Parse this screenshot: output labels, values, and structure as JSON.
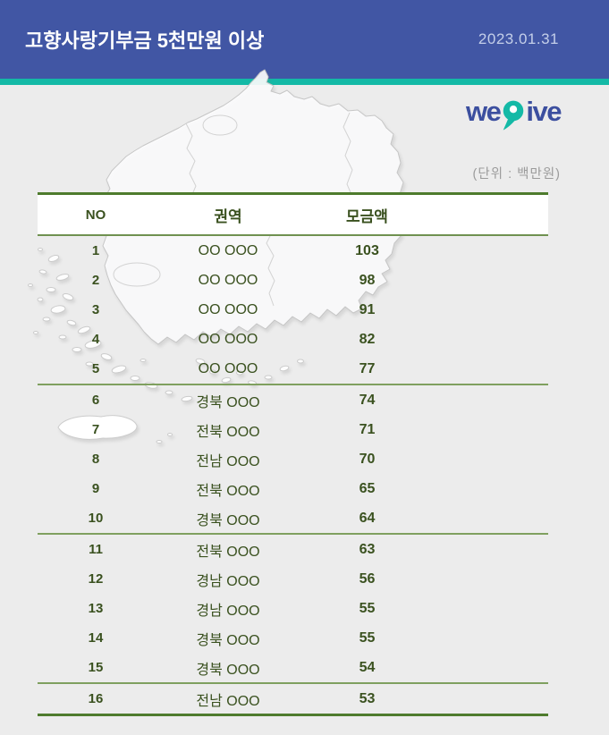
{
  "header": {
    "title": "고향사랑기부금 5천만원 이상",
    "date": "2023.01.31"
  },
  "logo": {
    "part1": "we",
    "part2": "ive",
    "name": "wegive"
  },
  "unit_label": "(단위 : 백만원)",
  "table": {
    "columns": [
      "NO",
      "권역",
      "모금액"
    ],
    "group_breaks": [
      5,
      10,
      15
    ],
    "rows": [
      {
        "no": "1",
        "region": "OO OOO",
        "amount": "103"
      },
      {
        "no": "2",
        "region": "OO OOO",
        "amount": "98"
      },
      {
        "no": "3",
        "region": "OO OOO",
        "amount": "91"
      },
      {
        "no": "4",
        "region": "OO OOO",
        "amount": "82"
      },
      {
        "no": "5",
        "region": "OO OOO",
        "amount": "77"
      },
      {
        "no": "6",
        "region": "경북 OOO",
        "amount": "74"
      },
      {
        "no": "7",
        "region": "전북 OOO",
        "amount": "71"
      },
      {
        "no": "8",
        "region": "전남 OOO",
        "amount": "70"
      },
      {
        "no": "9",
        "region": "전북 OOO",
        "amount": "65"
      },
      {
        "no": "10",
        "region": "경북 OOO",
        "amount": "64"
      },
      {
        "no": "11",
        "region": "전북 OOO",
        "amount": "63"
      },
      {
        "no": "12",
        "region": "경남 OOO",
        "amount": "56"
      },
      {
        "no": "13",
        "region": "경남 OOO",
        "amount": "55"
      },
      {
        "no": "14",
        "region": "경북 OOO",
        "amount": "55"
      },
      {
        "no": "15",
        "region": "경북 OOO",
        "amount": "54"
      },
      {
        "no": "16",
        "region": "전남 OOO",
        "amount": "53"
      }
    ]
  },
  "colors": {
    "banner": "#4156a4",
    "stripe": "#14b9a6",
    "line_dark_green": "#4e7b2d",
    "line_light_green": "#7fa05f",
    "text_green": "#3a511f",
    "logo_blue": "#3c4f9f",
    "logo_teal": "#14b9a6",
    "page_bg": "#ececec",
    "map_outline": "#c6c6c6"
  }
}
